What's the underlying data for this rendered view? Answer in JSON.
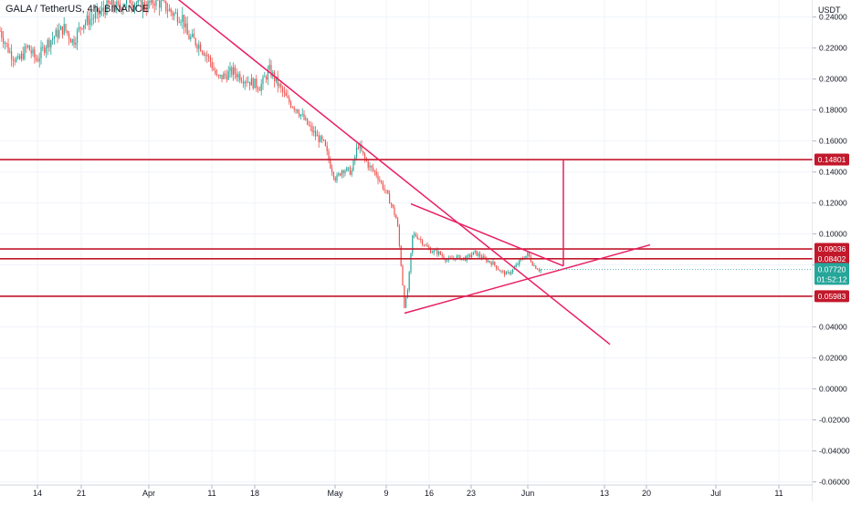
{
  "header": {
    "symbol_title": "GALA / TetherUS, 4h, BINANCE",
    "currency": "USDT"
  },
  "chart_data": {
    "type": "candlestick",
    "symbol": "GALA / TetherUS",
    "interval": "4h",
    "exchange": "BINANCE",
    "y_unit": "USDT",
    "y_ticks": [
      "0.24000",
      "0.22000",
      "0.20000",
      "0.18000",
      "0.16000",
      "0.14000",
      "0.12000",
      "0.10000",
      "0.08000",
      "0.06000",
      "0.04000",
      "0.02000",
      "0.00000",
      "-0.02000",
      "-0.04000",
      "-0.06000"
    ],
    "x_ticks": [
      "14",
      "21",
      "Apr",
      "11",
      "18",
      "May",
      "9",
      "16",
      "23",
      "Jun",
      "13",
      "20",
      "Jul",
      "11"
    ],
    "ylim": [
      -0.062,
      0.251
    ],
    "price_levels": [
      {
        "label": "0.14801",
        "value": 0.14801,
        "color": "#c2182b"
      },
      {
        "label": "0.09036",
        "value": 0.09036,
        "color": "#c2182b"
      },
      {
        "label": "0.08402",
        "value": 0.08402,
        "color": "#c2182b"
      },
      {
        "label": "0.05983",
        "value": 0.05983,
        "color": "#c2182b"
      }
    ],
    "current_price": {
      "label": "0.07720",
      "value": 0.0772,
      "countdown": "01:52:12",
      "color": "#26a69a"
    },
    "trendlines": [
      {
        "name": "descending resistance",
        "x": [
          195,
          668
        ],
        "y": [
          0.2515,
          0.0288
        ]
      },
      {
        "name": "triangle upper",
        "x": [
          450,
          617
        ],
        "y": [
          0.1195,
          0.0794
        ]
      },
      {
        "name": "triangle lower",
        "x": [
          443,
          712
        ],
        "y": [
          0.0489,
          0.093
        ]
      },
      {
        "name": "target projection",
        "x": [
          617,
          617
        ],
        "y": [
          0.0794,
          0.148
        ]
      }
    ],
    "price_path": [
      [
        0,
        0.231
      ],
      [
        10,
        0.218
      ],
      [
        20,
        0.211
      ],
      [
        30,
        0.221
      ],
      [
        40,
        0.212
      ],
      [
        50,
        0.222
      ],
      [
        60,
        0.228
      ],
      [
        70,
        0.233
      ],
      [
        80,
        0.224
      ],
      [
        90,
        0.236
      ],
      [
        100,
        0.239
      ],
      [
        110,
        0.243
      ],
      [
        120,
        0.248
      ],
      [
        130,
        0.246
      ],
      [
        140,
        0.252
      ],
      [
        150,
        0.249
      ],
      [
        160,
        0.247
      ],
      [
        170,
        0.251
      ],
      [
        180,
        0.247
      ],
      [
        190,
        0.242
      ],
      [
        200,
        0.24
      ],
      [
        205,
        0.228
      ],
      [
        212,
        0.225
      ],
      [
        220,
        0.221
      ],
      [
        230,
        0.212
      ],
      [
        238,
        0.2
      ],
      [
        245,
        0.202
      ],
      [
        255,
        0.205
      ],
      [
        265,
        0.201
      ],
      [
        275,
        0.198
      ],
      [
        285,
        0.195
      ],
      [
        295,
        0.206
      ],
      [
        305,
        0.196
      ],
      [
        315,
        0.186
      ],
      [
        325,
        0.181
      ],
      [
        335,
        0.172
      ],
      [
        345,
        0.164
      ],
      [
        355,
        0.158
      ],
      [
        362,
        0.144
      ],
      [
        368,
        0.135
      ],
      [
        375,
        0.142
      ],
      [
        385,
        0.14
      ],
      [
        392,
        0.158
      ],
      [
        398,
        0.15
      ],
      [
        405,
        0.143
      ],
      [
        412,
        0.139
      ],
      [
        420,
        0.13
      ],
      [
        428,
        0.12
      ],
      [
        435,
        0.108
      ],
      [
        440,
        0.075
      ],
      [
        443,
        0.052
      ],
      [
        447,
        0.066
      ],
      [
        452,
        0.1
      ],
      [
        458,
        0.098
      ],
      [
        465,
        0.093
      ],
      [
        472,
        0.089
      ],
      [
        480,
        0.088
      ],
      [
        490,
        0.083
      ],
      [
        500,
        0.085
      ],
      [
        510,
        0.084
      ],
      [
        520,
        0.088
      ],
      [
        530,
        0.084
      ],
      [
        540,
        0.081
      ],
      [
        548,
        0.076
      ],
      [
        555,
        0.074
      ],
      [
        562,
        0.077
      ],
      [
        570,
        0.083
      ],
      [
        578,
        0.087
      ],
      [
        584,
        0.08
      ],
      [
        590,
        0.077
      ],
      [
        593,
        0.0772
      ]
    ]
  }
}
